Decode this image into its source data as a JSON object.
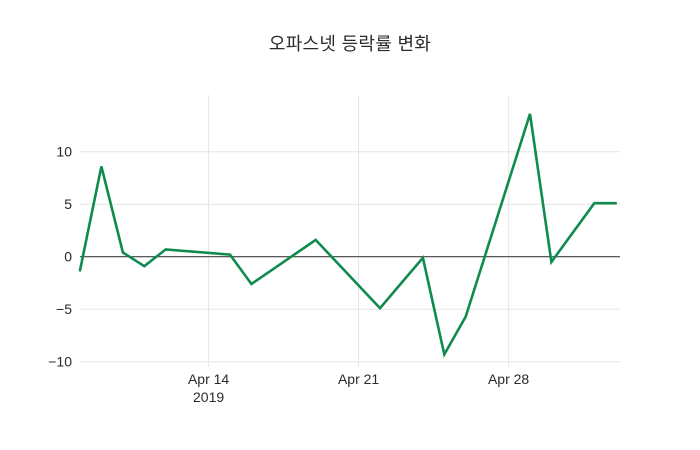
{
  "chart_data": {
    "type": "line",
    "title": "오파스넷 등락률 변화",
    "xlabel": "",
    "ylabel": "",
    "legend": "none",
    "grid": true,
    "zeroline": true,
    "xlim_days": [
      0,
      25.2
    ],
    "ylim": [
      -10.5,
      15.4
    ],
    "series": [
      {
        "name": "등락률",
        "color": "#0f8b4e",
        "dates": [
          "2019-04-08",
          "2019-04-09",
          "2019-04-10",
          "2019-04-11",
          "2019-04-12",
          "2019-04-15",
          "2019-04-16",
          "2019-04-17",
          "2019-04-18",
          "2019-04-19",
          "2019-04-22",
          "2019-04-23",
          "2019-04-24",
          "2019-04-25",
          "2019-04-26",
          "2019-04-29",
          "2019-04-30",
          "2019-05-02",
          "2019-05-03"
        ],
        "day_offsets": [
          0,
          1,
          2,
          3,
          4,
          7,
          8,
          9,
          10,
          11,
          14,
          15,
          16,
          17,
          18,
          21,
          22,
          24,
          25
        ],
        "values": [
          -1.3,
          8.6,
          0.4,
          -0.9,
          0.7,
          0.2,
          -2.6,
          -1.2,
          0.2,
          1.6,
          -4.9,
          -2.5,
          -0.1,
          -9.3,
          -5.7,
          13.6,
          -0.5,
          5.1,
          5.1
        ]
      }
    ],
    "xticks": [
      {
        "day": 6,
        "label": "Apr 14",
        "sublabel": "2019"
      },
      {
        "day": 13,
        "label": "Apr 21",
        "sublabel": ""
      },
      {
        "day": 20,
        "label": "Apr 28",
        "sublabel": ""
      }
    ],
    "yticks": [
      {
        "value": -10,
        "label": "−10"
      },
      {
        "value": -5,
        "label": "−5"
      },
      {
        "value": 0,
        "label": "0"
      },
      {
        "value": 5,
        "label": "5"
      },
      {
        "value": 10,
        "label": "10"
      }
    ],
    "colors": {
      "background": "#ffffff",
      "gridline": "#e6e6e6",
      "zeroline": "#444444",
      "tick_text": "#2a2a2a",
      "title_text": "#2b2b2b"
    }
  }
}
